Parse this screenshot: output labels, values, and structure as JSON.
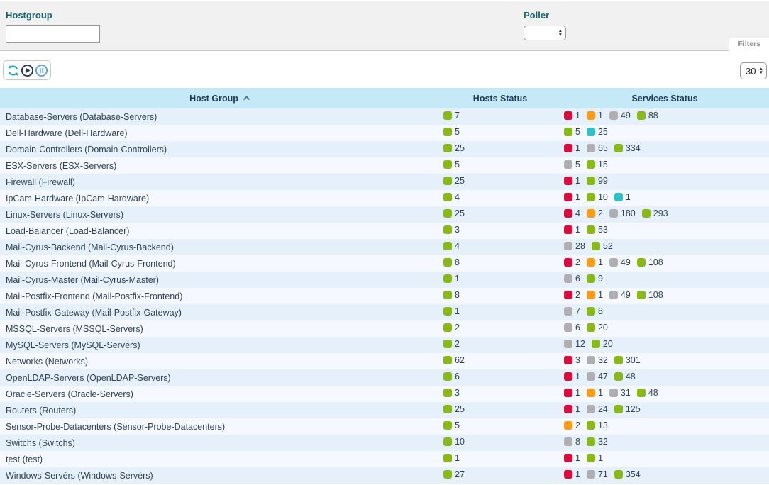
{
  "filters": {
    "hostgroup_label": "Hostgroup",
    "hostgroup_value": "",
    "poller_label": "Poller",
    "poller_value": "",
    "tab_label": "Filters"
  },
  "toolbar": {
    "icons": [
      "refresh-icon",
      "play-icon",
      "pause-icon"
    ],
    "page_size": "30"
  },
  "status_colors": {
    "ok": "#88B917",
    "critical": "#E00B3D",
    "warning": "#FF9A13",
    "unknown": "#AFAFB1",
    "pending": "#2BC2CC"
  },
  "table": {
    "columns": [
      {
        "label": "Host Group",
        "sort": "asc"
      },
      {
        "label": "Hosts Status"
      },
      {
        "label": "Services Status"
      }
    ],
    "rows": [
      {
        "name": "Database-Servers (Database-Servers)",
        "hosts": [
          {
            "status": "ok",
            "count": 7
          }
        ],
        "services": [
          {
            "status": "critical",
            "count": 1
          },
          {
            "status": "warning",
            "count": 1
          },
          {
            "status": "unknown",
            "count": 49
          },
          {
            "status": "ok",
            "count": 88
          }
        ]
      },
      {
        "name": "Dell-Hardware (Dell-Hardware)",
        "hosts": [
          {
            "status": "ok",
            "count": 5
          }
        ],
        "services": [
          {
            "status": "ok",
            "count": 5
          },
          {
            "status": "pending",
            "count": 25
          }
        ]
      },
      {
        "name": "Domain-Controllers (Domain-Controllers)",
        "hosts": [
          {
            "status": "ok",
            "count": 25
          }
        ],
        "services": [
          {
            "status": "critical",
            "count": 1
          },
          {
            "status": "unknown",
            "count": 65
          },
          {
            "status": "ok",
            "count": 334
          }
        ]
      },
      {
        "name": "ESX-Servers (ESX-Servers)",
        "hosts": [
          {
            "status": "ok",
            "count": 5
          }
        ],
        "services": [
          {
            "status": "unknown",
            "count": 5
          },
          {
            "status": "ok",
            "count": 15
          }
        ]
      },
      {
        "name": "Firewall (Firewall)",
        "hosts": [
          {
            "status": "ok",
            "count": 25
          }
        ],
        "services": [
          {
            "status": "critical",
            "count": 1
          },
          {
            "status": "ok",
            "count": 99
          }
        ]
      },
      {
        "name": "IpCam-Hardware (IpCam-Hardware)",
        "hosts": [
          {
            "status": "ok",
            "count": 4
          }
        ],
        "services": [
          {
            "status": "critical",
            "count": 1
          },
          {
            "status": "ok",
            "count": 10
          },
          {
            "status": "pending",
            "count": 1
          }
        ]
      },
      {
        "name": "Linux-Servers (Linux-Servers)",
        "hosts": [
          {
            "status": "ok",
            "count": 25
          }
        ],
        "services": [
          {
            "status": "critical",
            "count": 4
          },
          {
            "status": "warning",
            "count": 2
          },
          {
            "status": "unknown",
            "count": 180
          },
          {
            "status": "ok",
            "count": 293
          }
        ]
      },
      {
        "name": "Load-Balancer (Load-Balancer)",
        "hosts": [
          {
            "status": "ok",
            "count": 3
          }
        ],
        "services": [
          {
            "status": "critical",
            "count": 1
          },
          {
            "status": "ok",
            "count": 53
          }
        ]
      },
      {
        "name": "Mail-Cyrus-Backend (Mail-Cyrus-Backend)",
        "hosts": [
          {
            "status": "ok",
            "count": 4
          }
        ],
        "services": [
          {
            "status": "unknown",
            "count": 28
          },
          {
            "status": "ok",
            "count": 52
          }
        ]
      },
      {
        "name": "Mail-Cyrus-Frontend (Mail-Cyrus-Frontend)",
        "hosts": [
          {
            "status": "ok",
            "count": 8
          }
        ],
        "services": [
          {
            "status": "critical",
            "count": 2
          },
          {
            "status": "warning",
            "count": 1
          },
          {
            "status": "unknown",
            "count": 49
          },
          {
            "status": "ok",
            "count": 108
          }
        ]
      },
      {
        "name": "Mail-Cyrus-Master (Mail-Cyrus-Master)",
        "hosts": [
          {
            "status": "ok",
            "count": 1
          }
        ],
        "services": [
          {
            "status": "unknown",
            "count": 6
          },
          {
            "status": "ok",
            "count": 9
          }
        ]
      },
      {
        "name": "Mail-Postfix-Frontend (Mail-Postfix-Frontend)",
        "hosts": [
          {
            "status": "ok",
            "count": 8
          }
        ],
        "services": [
          {
            "status": "critical",
            "count": 2
          },
          {
            "status": "warning",
            "count": 1
          },
          {
            "status": "unknown",
            "count": 49
          },
          {
            "status": "ok",
            "count": 108
          }
        ]
      },
      {
        "name": "Mail-Postfix-Gateway (Mail-Postfix-Gateway)",
        "hosts": [
          {
            "status": "ok",
            "count": 1
          }
        ],
        "services": [
          {
            "status": "unknown",
            "count": 7
          },
          {
            "status": "ok",
            "count": 8
          }
        ]
      },
      {
        "name": "MSSQL-Servers (MSSQL-Servers)",
        "hosts": [
          {
            "status": "ok",
            "count": 2
          }
        ],
        "services": [
          {
            "status": "unknown",
            "count": 6
          },
          {
            "status": "ok",
            "count": 20
          }
        ]
      },
      {
        "name": "MySQL-Servers (MySQL-Servers)",
        "hosts": [
          {
            "status": "ok",
            "count": 2
          }
        ],
        "services": [
          {
            "status": "unknown",
            "count": 12
          },
          {
            "status": "ok",
            "count": 20
          }
        ]
      },
      {
        "name": "Networks (Networks)",
        "hosts": [
          {
            "status": "ok",
            "count": 62
          }
        ],
        "services": [
          {
            "status": "critical",
            "count": 3
          },
          {
            "status": "unknown",
            "count": 32
          },
          {
            "status": "ok",
            "count": 301
          }
        ]
      },
      {
        "name": "OpenLDAP-Servers (OpenLDAP-Servers)",
        "hosts": [
          {
            "status": "ok",
            "count": 6
          }
        ],
        "services": [
          {
            "status": "critical",
            "count": 1
          },
          {
            "status": "unknown",
            "count": 47
          },
          {
            "status": "ok",
            "count": 48
          }
        ]
      },
      {
        "name": "Oracle-Servers (Oracle-Servers)",
        "hosts": [
          {
            "status": "ok",
            "count": 3
          }
        ],
        "services": [
          {
            "status": "critical",
            "count": 1
          },
          {
            "status": "warning",
            "count": 1
          },
          {
            "status": "unknown",
            "count": 31
          },
          {
            "status": "ok",
            "count": 48
          }
        ]
      },
      {
        "name": "Routers (Routers)",
        "hosts": [
          {
            "status": "ok",
            "count": 25
          }
        ],
        "services": [
          {
            "status": "critical",
            "count": 1
          },
          {
            "status": "unknown",
            "count": 24
          },
          {
            "status": "ok",
            "count": 125
          }
        ]
      },
      {
        "name": "Sensor-Probe-Datacenters (Sensor-Probe-Datacenters)",
        "hosts": [
          {
            "status": "ok",
            "count": 5
          }
        ],
        "services": [
          {
            "status": "warning",
            "count": 2
          },
          {
            "status": "ok",
            "count": 13
          }
        ]
      },
      {
        "name": "Switchs (Switchs)",
        "hosts": [
          {
            "status": "ok",
            "count": 10
          }
        ],
        "services": [
          {
            "status": "unknown",
            "count": 8
          },
          {
            "status": "ok",
            "count": 32
          }
        ]
      },
      {
        "name": "test (test)",
        "hosts": [
          {
            "status": "ok",
            "count": 1
          }
        ],
        "services": [
          {
            "status": "critical",
            "count": 1
          },
          {
            "status": "ok",
            "count": 1
          }
        ]
      },
      {
        "name": "Windows-Servérs (Windows-Servérs)",
        "hosts": [
          {
            "status": "ok",
            "count": 27
          }
        ],
        "services": [
          {
            "status": "critical",
            "count": 1
          },
          {
            "status": "unknown",
            "count": 71
          },
          {
            "status": "ok",
            "count": 354
          }
        ]
      }
    ]
  }
}
